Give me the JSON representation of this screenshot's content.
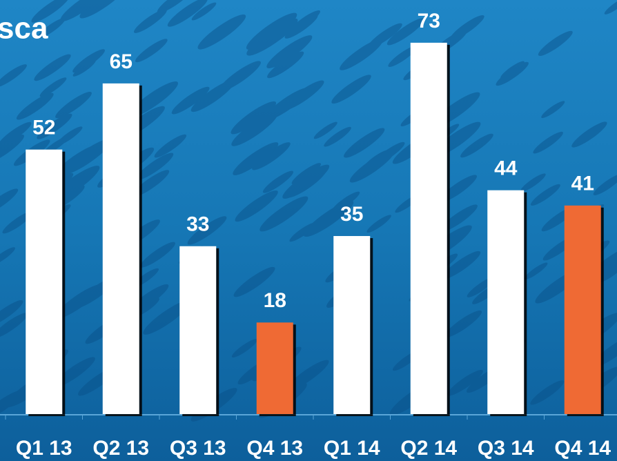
{
  "chart_data": {
    "type": "bar",
    "title": "sca",
    "categories": [
      "Q1 13",
      "Q2 13",
      "Q3 13",
      "Q4 13",
      "Q1 14",
      "Q2 14",
      "Q3 14",
      "Q4 14"
    ],
    "values": [
      52,
      65,
      33,
      18,
      35,
      73,
      44,
      41
    ],
    "colors": [
      "#ffffff",
      "#ffffff",
      "#ffffff",
      "#ef6a34",
      "#ffffff",
      "#ffffff",
      "#ffffff",
      "#ef6a34"
    ],
    "ylim": [
      0,
      81.4
    ]
  }
}
